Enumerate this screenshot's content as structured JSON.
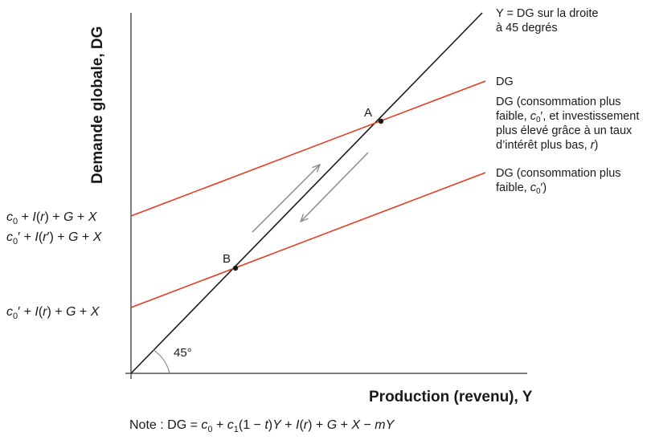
{
  "axes": {
    "y_title": "Demande globale, DG",
    "x_title": "Production (revenu), Y",
    "angle_label": "45°"
  },
  "intercept_labels": {
    "top_1": [
      "c",
      "0",
      " + ",
      "I",
      "(",
      "r",
      ") + ",
      "G",
      " + ",
      "X"
    ],
    "top_2": [
      "c",
      "0",
      "′ + ",
      "I",
      "(",
      "r",
      "′) + ",
      "G",
      " + ",
      "X"
    ],
    "bottom": [
      "c",
      "0",
      "′ + ",
      "I",
      "(",
      "r",
      ") + ",
      "G",
      " + ",
      "X"
    ]
  },
  "line_labels": {
    "diag_1": "Y = DG sur la droite",
    "diag_2": "à 45 degrés",
    "dg": "DG",
    "mid_1": "DG (consommation plus",
    "mid_2a": "faible, ",
    "mid_2b": "′, et investissement",
    "mid_3": "plus élevé grâce à un taux",
    "mid_4": "d’intérêt plus bas, ",
    "mid_4r": "r",
    "mid_4e": ")",
    "low_1": "DG (consommation plus",
    "low_2a": "faible, ",
    "low_2b": "′)",
    "c": "c",
    "sub0": "0"
  },
  "points": {
    "A": "A",
    "B": "B"
  },
  "note": {
    "prefix": "Note : DG = ",
    "c": "c",
    "sub0": "0",
    "plus": " + ",
    "sub1": "1",
    "paren": "(1 − ",
    "t": "t",
    "close": ")",
    "Y": "Y",
    "I": "I",
    "r": "r",
    "G": "G",
    "X": "X",
    "m": "m",
    "minus": " − "
  },
  "colors": {
    "red": "#e63a1f",
    "black": "#1a1a1a",
    "arrow": "#8c8c8c",
    "axis": "#555555"
  }
}
